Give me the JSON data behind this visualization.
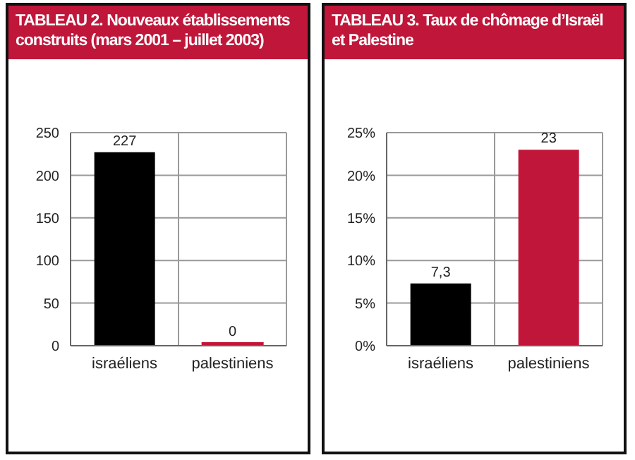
{
  "chart_data": [
    {
      "type": "bar",
      "title": "TABLEAU 2. Nouveaux établissements construits (mars 2001 – juillet 2003)",
      "categories": [
        "israéliens",
        "palestiniens"
      ],
      "values": [
        227,
        0
      ],
      "colors": [
        "#000000",
        "#c0163a"
      ],
      "value_labels": [
        "227",
        "0"
      ],
      "ylim": [
        0,
        250
      ],
      "yticks": [
        0,
        50,
        100,
        150,
        200,
        250
      ],
      "grid": true
    },
    {
      "type": "bar",
      "title": "TABLEAU 3. Taux de chômage  d’Israël et Palestine",
      "categories": [
        "israéliens",
        "palestiniens"
      ],
      "values": [
        7.3,
        23
      ],
      "colors": [
        "#000000",
        "#c0163a"
      ],
      "value_labels": [
        "7,3",
        "23"
      ],
      "ylim": [
        0,
        25
      ],
      "yticks": [
        {
          "value": 0,
          "label": "0%"
        },
        {
          "value": 5,
          "label": "5%"
        },
        {
          "value": 10,
          "label": "10%"
        },
        {
          "value": 15,
          "label": "15%"
        },
        {
          "value": 20,
          "label": "20%"
        },
        {
          "value": 25,
          "label": "25%"
        }
      ],
      "grid": true
    }
  ]
}
